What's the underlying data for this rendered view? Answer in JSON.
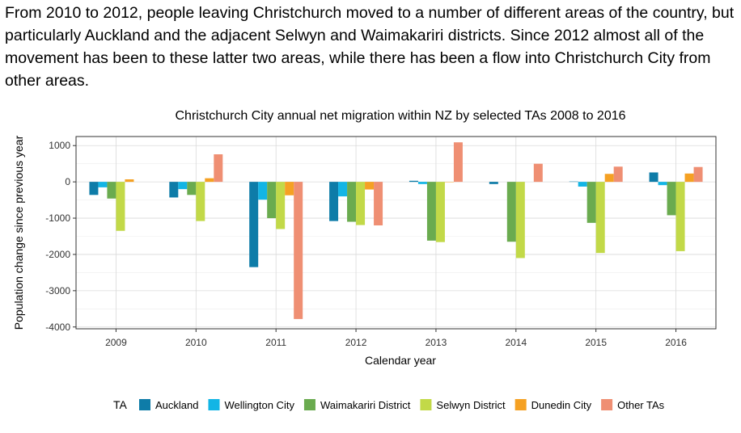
{
  "intro_text": "From 2010 to 2012, people leaving Christchurch moved to a number of different areas of the country, but particularly Auckland and the adjacent Selwyn and Waimakariri districts. Since 2012 almost all of the movement has been to these latter two areas, while there has been a flow into Christchurch City from other areas.",
  "chart_data": {
    "type": "bar",
    "title": "Christchurch City annual net migration within NZ by selected TAs 2008 to 2016",
    "xlabel": "Calendar year",
    "ylabel": "Population change since previous year",
    "ylim": [
      -4050,
      1250
    ],
    "yticks": [
      1000,
      0,
      -1000,
      -2000,
      -3000,
      -4000
    ],
    "grid": true,
    "legend_title": "TA",
    "legend_position": "bottom",
    "categories": [
      "2009",
      "2010",
      "2011",
      "2012",
      "2013",
      "2014",
      "2015",
      "2016"
    ],
    "series": [
      {
        "name": "Auckland",
        "color": "#0e7ca8",
        "values": [
          -360,
          -430,
          -2350,
          -1080,
          30,
          -60,
          10,
          260
        ]
      },
      {
        "name": "Wellington City",
        "color": "#12b5e5",
        "values": [
          -150,
          -200,
          -490,
          -400,
          -60,
          0,
          -130,
          -90
        ]
      },
      {
        "name": "Waimakariri District",
        "color": "#6aab4f",
        "values": [
          -460,
          -360,
          -1000,
          -1100,
          -1620,
          -1650,
          -1130,
          -920
        ]
      },
      {
        "name": "Selwyn District",
        "color": "#c2d948",
        "values": [
          -1350,
          -1080,
          -1300,
          -1190,
          -1660,
          -2100,
          -1960,
          -1910
        ]
      },
      {
        "name": "Dunedin City",
        "color": "#f5a123",
        "values": [
          70,
          100,
          -370,
          -210,
          -10,
          0,
          220,
          230
        ]
      },
      {
        "name": "Other TAs",
        "color": "#ef8f73",
        "values": [
          0,
          760,
          -3780,
          -1200,
          1090,
          500,
          420,
          410
        ]
      }
    ]
  }
}
